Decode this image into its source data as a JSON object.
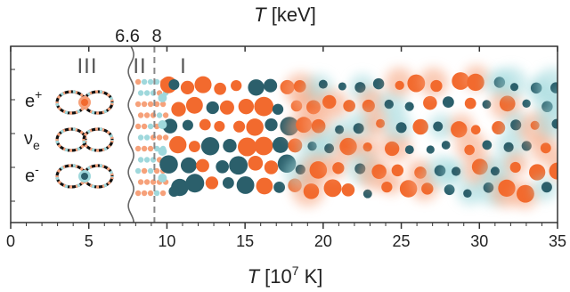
{
  "axes": {
    "top_title_var": "T",
    "top_title_unit": " [keV]",
    "bottom_title_var": "T",
    "bottom_title_unit_pre": " [10",
    "bottom_title_exp": "7",
    "bottom_title_unit_post": " K]",
    "xlim": [
      0,
      35
    ],
    "ticks": [
      0,
      5,
      10,
      15,
      20,
      25,
      30,
      35
    ],
    "tick_labels": [
      "0",
      "5",
      "10",
      "15",
      "20",
      "25",
      "30",
      "35"
    ]
  },
  "markers": {
    "top_labels": [
      "6.6",
      "8"
    ],
    "boundary_6_6": 7.7,
    "boundary_8": 9.2
  },
  "regions": {
    "labels": [
      "III",
      "II",
      "I"
    ]
  },
  "particles": {
    "positron": "e",
    "positron_sup": "+",
    "neutrino": "ν",
    "neutrino_sub": "e",
    "electron": "e",
    "electron_sup": "-"
  },
  "colors": {
    "orange": "#f26a2e",
    "teal": "#2b5f6b",
    "light_blue": "#9fd8dc",
    "light_orange": "#f6a17a",
    "axis": "#333333",
    "dashed": "#888888"
  }
}
